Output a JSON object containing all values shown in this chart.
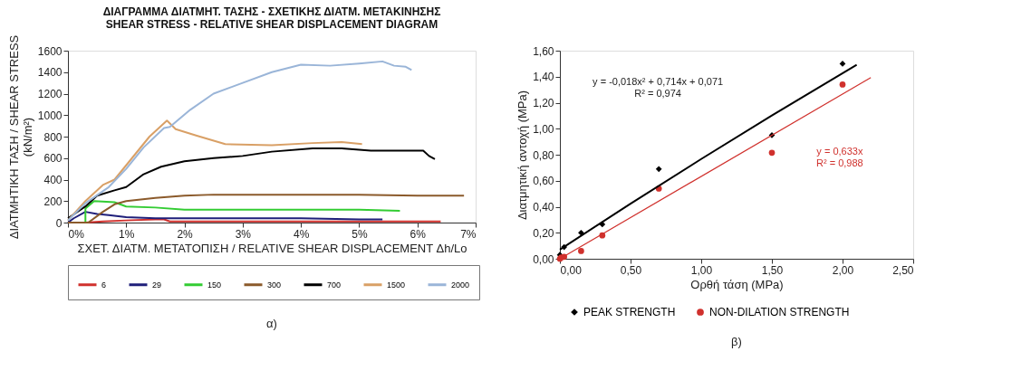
{
  "chart_data": [
    {
      "type": "line",
      "title": "ΔΙΑΓΡΑΜΜΑ ΔΙΑΤΜΗΤ. ΤΑΣΗΣ - ΣΧΕΤΙΚΗΣ ΔΙΑΤΜ. ΜΕΤΑΚΙΝΗΣΗΣ",
      "subtitle": "SHEAR STRESS - RELATIVE SHEAR DISPLACEMENT DIAGRAM",
      "xlabel": "ΣΧΕΤ. ΔΙΑΤΜ. ΜΕΤΑΤΟΠΙΣΗ / RELATIVE SHEAR DISPLACEMENT Δh/Lo",
      "ylabel": "ΔΙΑΤΜΗΤΙΚΗ ΤΑΣΗ / SHEAR STRESS\n(kN/m²)",
      "xlim": [
        0,
        7
      ],
      "xticks": [
        {
          "value": 0,
          "label": "0%"
        },
        {
          "value": 1,
          "label": "1%"
        },
        {
          "value": 2,
          "label": "2%"
        },
        {
          "value": 3,
          "label": "3%"
        },
        {
          "value": 4,
          "label": "4%"
        },
        {
          "value": 5,
          "label": "5%"
        },
        {
          "value": 6,
          "label": "6%"
        },
        {
          "value": 7,
          "label": "7%"
        }
      ],
      "ylim": [
        0,
        1600
      ],
      "yticks": [
        0,
        200,
        400,
        600,
        800,
        1000,
        1200,
        1400,
        1600
      ],
      "legend": "bottom",
      "marker": "none",
      "line_style": "solid",
      "annotations": [
        "α)"
      ],
      "series": [
        {
          "name": "6",
          "color": "#d0312d",
          "x": [
            0,
            0.3,
            0.6,
            1.0,
            1.5,
            1.65,
            1.75,
            2.5,
            3.5,
            4.5,
            5.5,
            6.4
          ],
          "values": [
            0,
            0,
            10,
            20,
            30,
            30,
            10,
            10,
            10,
            10,
            10,
            10
          ]
        },
        {
          "name": "29",
          "color": "#1f1f7a",
          "x": [
            0,
            0.1,
            0.3,
            0.5,
            0.7,
            1.0,
            1.5,
            2,
            3,
            4,
            5,
            5.4
          ],
          "values": [
            0,
            40,
            100,
            80,
            70,
            50,
            40,
            40,
            40,
            40,
            30,
            30
          ]
        },
        {
          "name": "150",
          "color": "#33cc33",
          "x": [
            0,
            0.3,
            0.3,
            0.45,
            0.8,
            1.0,
            1.5,
            2,
            3,
            4,
            5,
            5.7
          ],
          "values": [
            0,
            0,
            130,
            200,
            190,
            150,
            140,
            120,
            120,
            120,
            120,
            110
          ]
        },
        {
          "name": "300",
          "color": "#8b5a2b",
          "x": [
            0,
            0.35,
            0.6,
            0.8,
            1.0,
            1.5,
            2,
            2.5,
            3,
            4,
            5,
            6,
            6.8
          ],
          "values": [
            0,
            0,
            100,
            170,
            200,
            230,
            250,
            260,
            260,
            260,
            260,
            250,
            250
          ]
        },
        {
          "name": "700",
          "color": "#000000",
          "x": [
            0,
            0.3,
            0.5,
            0.8,
            1.0,
            1.3,
            1.6,
            2,
            2.5,
            3,
            3.5,
            4.2,
            4.7,
            5.2,
            6.1,
            6.2,
            6.3
          ],
          "values": [
            40,
            150,
            250,
            300,
            330,
            450,
            520,
            570,
            600,
            620,
            660,
            690,
            690,
            670,
            670,
            620,
            590
          ]
        },
        {
          "name": "1500",
          "color": "#d9a066",
          "x": [
            0,
            0.3,
            0.6,
            0.8,
            1.1,
            1.4,
            1.7,
            1.85,
            2.2,
            2.7,
            3.5,
            4.2,
            4.7,
            5.05
          ],
          "values": [
            20,
            200,
            350,
            400,
            600,
            800,
            950,
            870,
            810,
            730,
            720,
            740,
            750,
            730
          ]
        },
        {
          "name": "2000",
          "color": "#9ab5d8",
          "x": [
            0,
            0.3,
            0.7,
            1.0,
            1.3,
            1.65,
            1.75,
            2.1,
            2.5,
            3,
            3.5,
            4,
            4.5,
            5,
            5.4,
            5.6,
            5.8,
            5.9
          ],
          "values": [
            20,
            180,
            330,
            500,
            700,
            880,
            890,
            1050,
            1200,
            1300,
            1400,
            1470,
            1460,
            1480,
            1500,
            1460,
            1450,
            1420
          ]
        }
      ]
    },
    {
      "type": "scatter",
      "xlabel": "Ορθή τάση (MPa)",
      "ylabel": "Διατμητική αντοχή  (MPa)",
      "xlim": [
        0,
        2.5
      ],
      "xticks": [
        {
          "value": 0,
          "label": "0,00"
        },
        {
          "value": 0.5,
          "label": "0,50"
        },
        {
          "value": 1,
          "label": "1,00"
        },
        {
          "value": 1.5,
          "label": "1,50"
        },
        {
          "value": 2,
          "label": "2,00"
        },
        {
          "value": 2.5,
          "label": "2,50"
        }
      ],
      "ylim": [
        0,
        1.6
      ],
      "yticks": [
        {
          "value": 0,
          "label": "0,00"
        },
        {
          "value": 0.2,
          "label": "0,20"
        },
        {
          "value": 0.4,
          "label": "0,40"
        },
        {
          "value": 0.6,
          "label": "0,60"
        },
        {
          "value": 0.8,
          "label": "0,80"
        },
        {
          "value": 1,
          "label": "1,00"
        },
        {
          "value": 1.2,
          "label": "1,20"
        },
        {
          "value": 1.4,
          "label": "1,40"
        },
        {
          "value": 1.6,
          "label": "1,60"
        }
      ],
      "legend": "bottom",
      "annotations": [
        "y = -0,018x² + 0,714x + 0,071",
        "R² = 0,974",
        "y = 0,633x",
        "R² = 0,988",
        "β)"
      ],
      "series": [
        {
          "name": "PEAK  STRENGTH",
          "type": "scatter",
          "marker": "diamond",
          "color": "#000000",
          "x": [
            0,
            0.03,
            0.15,
            0.3,
            0.7,
            1.5,
            2.0
          ],
          "values": [
            0.03,
            0.09,
            0.2,
            0.265,
            0.69,
            0.95,
            1.5
          ]
        },
        {
          "name": "NON-DILATION  STRENGTH",
          "type": "scatter",
          "marker": "circle",
          "color": "#d0312d",
          "x": [
            0,
            0.01,
            0.03,
            0.15,
            0.3,
            0.7,
            1.5,
            2.0
          ],
          "values": [
            0.0,
            0.01,
            0.015,
            0.06,
            0.18,
            0.54,
            0.815,
            1.34
          ]
        },
        {
          "type": "line",
          "color": "#000000",
          "line_style": "solid",
          "x": [
            0,
            0.5,
            1.0,
            1.5,
            2.1
          ],
          "values": [
            0.071,
            0.424,
            0.767,
            1.102,
            1.491
          ]
        },
        {
          "type": "line",
          "color": "#d0312d",
          "line_style": "solid",
          "x": [
            0,
            2.2
          ],
          "values": [
            0,
            1.393
          ]
        }
      ]
    }
  ]
}
